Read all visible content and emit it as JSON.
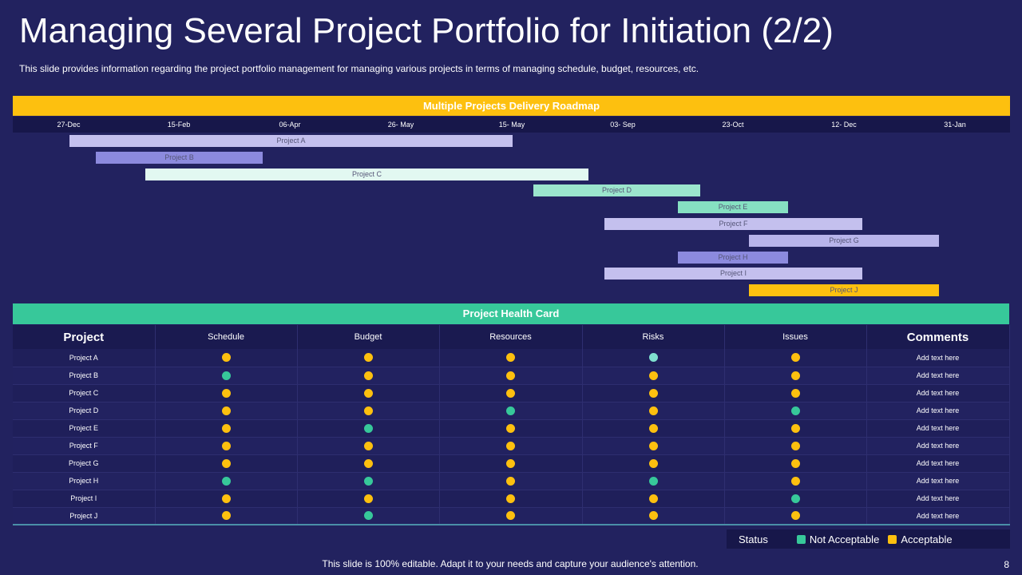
{
  "title": "Managing Several Project Portfolio for Initiation (2/2)",
  "subtitle": "This slide provides information regarding the project portfolio management for managing various projects in terms of managing schedule, budget, resources, etc.",
  "roadmap": {
    "header": "Multiple Projects Delivery Roadmap",
    "dates": [
      "27-Dec",
      "15-Feb",
      "06-Apr",
      "26- May",
      "15- May",
      "03- Sep",
      "23-Oct",
      "12- Dec",
      "31-Jan"
    ],
    "projects": [
      {
        "label": "Project A",
        "color": "#c4c0ee"
      },
      {
        "label": "Project B",
        "color": "#8c8ade"
      },
      {
        "label": "Project C",
        "color": "#e2f8f1"
      },
      {
        "label": "Project D",
        "color": "#9be5cd"
      },
      {
        "label": "Project E",
        "color": "#86e0c2"
      },
      {
        "label": "Project F",
        "color": "#c4c0ee"
      },
      {
        "label": "Project G",
        "color": "#b8b4ea"
      },
      {
        "label": "Project H",
        "color": "#8c8ade"
      },
      {
        "label": "Project I",
        "color": "#c4c0ee"
      },
      {
        "label": "Project J",
        "color": "#fdc00f"
      }
    ]
  },
  "health": {
    "header": "Project Health Card",
    "columns": [
      "Project",
      "Schedule",
      "Budget",
      "Resources",
      "Risks",
      "Issues",
      "Comments"
    ],
    "rows": [
      {
        "project": "Project A",
        "status": [
          "A",
          "A",
          "A",
          "L",
          "A"
        ],
        "comment": "Add text here"
      },
      {
        "project": "Project B",
        "status": [
          "N",
          "A",
          "A",
          "A",
          "A"
        ],
        "comment": "Add text here"
      },
      {
        "project": "Project C",
        "status": [
          "A",
          "A",
          "A",
          "A",
          "A"
        ],
        "comment": "Add text here"
      },
      {
        "project": "Project D",
        "status": [
          "A",
          "A",
          "N",
          "A",
          "N"
        ],
        "comment": "Add text here"
      },
      {
        "project": "Project E",
        "status": [
          "A",
          "N",
          "A",
          "A",
          "A"
        ],
        "comment": "Add text here"
      },
      {
        "project": "Project F",
        "status": [
          "A",
          "A",
          "A",
          "A",
          "A"
        ],
        "comment": "Add text here"
      },
      {
        "project": "Project G",
        "status": [
          "A",
          "A",
          "A",
          "A",
          "A"
        ],
        "comment": "Add text here"
      },
      {
        "project": "Project H",
        "status": [
          "N",
          "N",
          "A",
          "N",
          "A"
        ],
        "comment": "Add text here"
      },
      {
        "project": "Project I",
        "status": [
          "A",
          "A",
          "A",
          "A",
          "N"
        ],
        "comment": "Add text here"
      },
      {
        "project": "Project J",
        "status": [
          "A",
          "N",
          "A",
          "A",
          "A"
        ],
        "comment": "Add text here"
      }
    ]
  },
  "legend": {
    "status_label": "Status",
    "not_acceptable": "Not Acceptable",
    "acceptable": "Acceptable",
    "not_acceptable_color": "#37c89a",
    "acceptable_color": "#fdc00f",
    "light_color": "#7fe0cf"
  },
  "footer": "This slide is 100% editable. Adapt it to your needs and capture your audience's attention.",
  "page_number": "8"
}
